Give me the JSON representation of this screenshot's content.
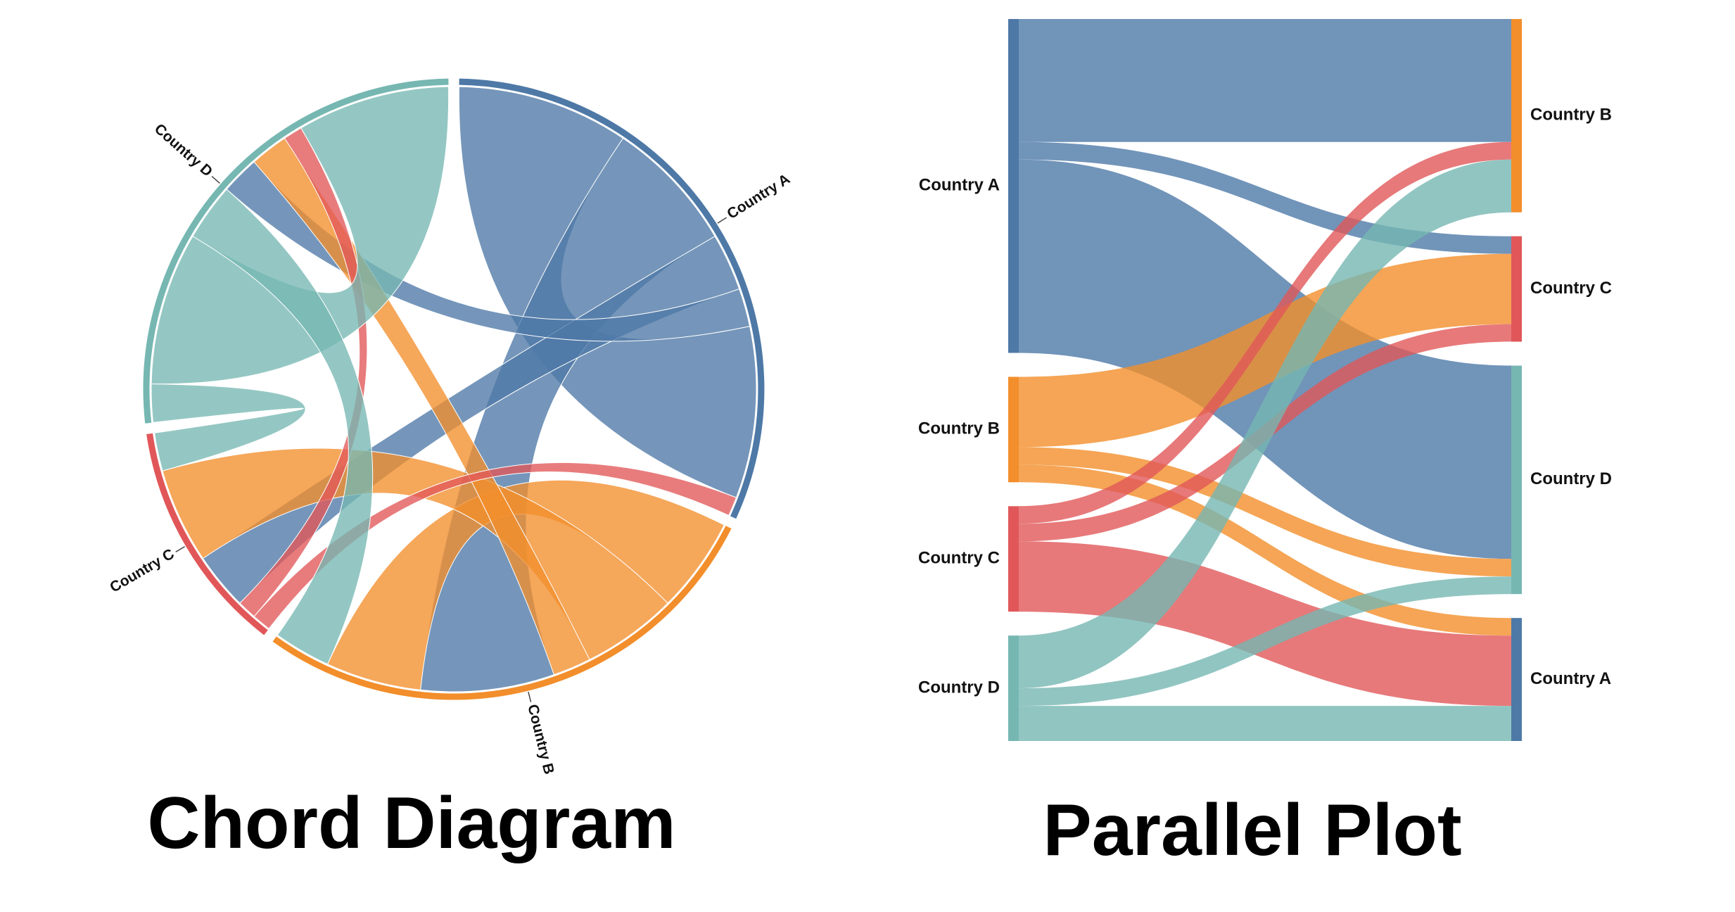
{
  "chart_data": [
    {
      "type": "chord",
      "title": "Chord Diagram",
      "groups": [
        {
          "name": "Country A",
          "color": "#4e79a7"
        },
        {
          "name": "Country B",
          "color": "#f28e2b"
        },
        {
          "name": "Country C",
          "color": "#e15759"
        },
        {
          "name": "Country D",
          "color": "#76b7b2"
        }
      ],
      "links": [
        {
          "source": "Country A",
          "target": "Country A",
          "value": 9
        },
        {
          "source": "Country A",
          "target": "Country B",
          "value": 7
        },
        {
          "source": "Country A",
          "target": "Country C",
          "value": 3
        },
        {
          "source": "Country A",
          "target": "Country D",
          "value": 2
        },
        {
          "source": "Country B",
          "target": "Country B",
          "value": 5
        },
        {
          "source": "Country B",
          "target": "Country C",
          "value": 5
        },
        {
          "source": "Country B",
          "target": "Country D",
          "value": 2
        },
        {
          "source": "Country C",
          "target": "Country A",
          "value": 1
        },
        {
          "source": "Country C",
          "target": "Country D",
          "value": 1
        },
        {
          "source": "Country D",
          "target": "Country C",
          "value": 2
        },
        {
          "source": "Country D",
          "target": "Country D",
          "value": 8
        },
        {
          "source": "Country D",
          "target": "Country B",
          "value": 3
        }
      ]
    },
    {
      "type": "parallel",
      "title": "Parallel Plot",
      "left_axis": [
        "Country A",
        "Country B",
        "Country C",
        "Country D"
      ],
      "right_axis": [
        "Country B",
        "Country C",
        "Country D",
        "Country A"
      ],
      "colors": {
        "Country A": "#4e79a7",
        "Country B": "#f28e2b",
        "Country C": "#e15759",
        "Country D": "#76b7b2"
      },
      "links": [
        {
          "source": "Country A",
          "target": "Country B",
          "value": 7
        },
        {
          "source": "Country A",
          "target": "Country C",
          "value": 1
        },
        {
          "source": "Country A",
          "target": "Country D",
          "value": 11
        },
        {
          "source": "Country B",
          "target": "Country C",
          "value": 4
        },
        {
          "source": "Country B",
          "target": "Country D",
          "value": 1
        },
        {
          "source": "Country B",
          "target": "Country A",
          "value": 1
        },
        {
          "source": "Country C",
          "target": "Country B",
          "value": 1
        },
        {
          "source": "Country C",
          "target": "Country C",
          "value": 1
        },
        {
          "source": "Country C",
          "target": "Country A",
          "value": 4
        },
        {
          "source": "Country D",
          "target": "Country B",
          "value": 3
        },
        {
          "source": "Country D",
          "target": "Country D",
          "value": 1
        },
        {
          "source": "Country D",
          "target": "Country A",
          "value": 2
        }
      ]
    }
  ]
}
